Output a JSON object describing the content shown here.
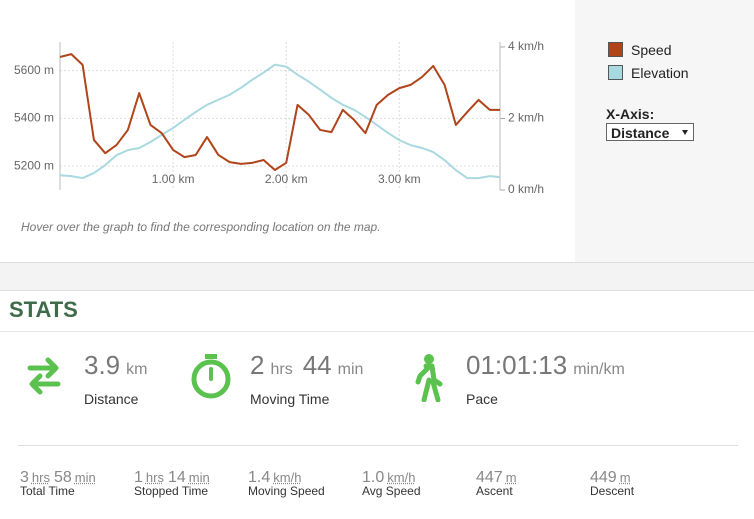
{
  "chart_data": {
    "type": "line",
    "x": [
      0,
      0.1,
      0.2,
      0.3,
      0.4,
      0.5,
      0.6,
      0.7,
      0.8,
      0.9,
      1.0,
      1.1,
      1.2,
      1.3,
      1.4,
      1.5,
      1.6,
      1.7,
      1.8,
      1.9,
      2.0,
      2.1,
      2.2,
      2.3,
      2.4,
      2.5,
      2.6,
      2.7,
      2.8,
      2.9,
      3.0,
      3.1,
      3.2,
      3.3,
      3.4,
      3.5,
      3.6,
      3.7,
      3.8,
      3.89
    ],
    "xlim": [
      0,
      3.89
    ],
    "xticks": [
      {
        "value": 1,
        "label": "1.00 km"
      },
      {
        "value": 2,
        "label": "2.00 km"
      },
      {
        "value": 3,
        "label": "3.00 km"
      }
    ],
    "ylim": [
      5100,
      5720
    ],
    "yticks": [
      {
        "value": 5200,
        "label": "5200 m"
      },
      {
        "value": 5400,
        "label": "5400 m"
      },
      {
        "value": 5600,
        "label": "5600 m"
      }
    ],
    "y2lim": [
      0,
      4.14
    ],
    "y2ticks": [
      {
        "value": 0,
        "label": "0 km/h"
      },
      {
        "value": 2,
        "label": "2 km/h"
      },
      {
        "value": 4,
        "label": "4 km/h"
      }
    ],
    "grid": true,
    "legend": "right",
    "series": [
      {
        "name": "Speed",
        "color": "#b0441a",
        "axis": "y2",
        "values": [
          3.72,
          3.8,
          3.5,
          1.4,
          1.03,
          1.26,
          1.68,
          2.71,
          1.82,
          1.59,
          1.12,
          0.92,
          0.98,
          1.48,
          0.98,
          0.78,
          0.73,
          0.76,
          0.84,
          0.56,
          0.76,
          2.38,
          2.1,
          1.68,
          1.62,
          2.24,
          1.96,
          1.59,
          2.38,
          2.66,
          2.85,
          2.94,
          3.16,
          3.47,
          2.94,
          1.82,
          2.18,
          2.52,
          2.24,
          2.24
        ]
      },
      {
        "name": "Elevation",
        "color": "#a9d9e0",
        "values": [
          5162,
          5158,
          5150,
          5171,
          5204,
          5246,
          5267,
          5276,
          5301,
          5331,
          5360,
          5394,
          5427,
          5457,
          5478,
          5499,
          5528,
          5562,
          5592,
          5625,
          5617,
          5583,
          5554,
          5520,
          5486,
          5457,
          5436,
          5406,
          5373,
          5339,
          5309,
          5288,
          5276,
          5259,
          5225,
          5183,
          5150,
          5150,
          5158,
          5154
        ]
      }
    ]
  },
  "controls": {
    "xaxis_label": "X-Axis:",
    "xaxis_value": "Distance"
  },
  "hint": "Hover over the graph to find the corresponding location on the map.",
  "stats": {
    "title": "STATS",
    "main": [
      {
        "parts": [
          {
            "value": "3.9",
            "unit": "km"
          }
        ],
        "label": "Distance"
      },
      {
        "parts": [
          {
            "value": "2",
            "unit": "hrs"
          },
          {
            "value": "44",
            "unit": "min"
          }
        ],
        "label": "Moving Time"
      },
      {
        "parts": [
          {
            "value": "01:01:13",
            "unit": "min/km"
          }
        ],
        "label": "Pace"
      }
    ],
    "secondary": [
      {
        "parts": [
          {
            "value": "3",
            "unit": "hrs"
          },
          {
            "value": "58",
            "unit": "min"
          }
        ],
        "label": "Total Time"
      },
      {
        "parts": [
          {
            "value": "1",
            "unit": "hrs"
          },
          {
            "value": "14",
            "unit": "min"
          }
        ],
        "label": "Stopped Time"
      },
      {
        "parts": [
          {
            "value": "1.4",
            "unit": "km/h"
          }
        ],
        "label": "Moving Speed"
      },
      {
        "parts": [
          {
            "value": "1.0",
            "unit": "km/h"
          }
        ],
        "label": "Avg Speed"
      },
      {
        "parts": [
          {
            "value": "447",
            "unit": "m"
          }
        ],
        "label": "Ascent"
      },
      {
        "parts": [
          {
            "value": "449",
            "unit": "m"
          }
        ],
        "label": "Descent"
      }
    ]
  }
}
